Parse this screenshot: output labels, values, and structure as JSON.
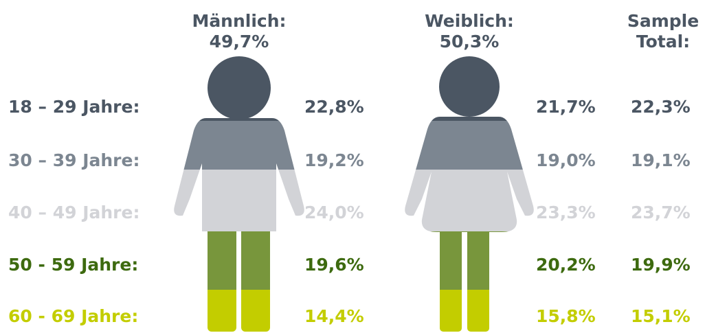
{
  "header": {
    "male": {
      "label": "Männlich:",
      "share": "49,7%"
    },
    "female": {
      "label": "Weiblich:",
      "share": "50,3%"
    },
    "total": {
      "line1": "Sample",
      "line2": "Total:"
    }
  },
  "rows": [
    {
      "label": "18 – 29 Jahre:",
      "male": "22,8%",
      "female": "21,7%",
      "total": "22,3%",
      "color": "#4b5663"
    },
    {
      "label": "30 – 39 Jahre:",
      "male": "19,2%",
      "female": "19,0%",
      "total": "19,1%",
      "color": "#7c8691"
    },
    {
      "label": "40 – 49 Jahre:",
      "male": "24,0%",
      "female": "23,3%",
      "total": "23,7%",
      "color": "#d2d3d7"
    },
    {
      "label": "50 - 59 Jahre:",
      "male": "19,6%",
      "female": "20,2%",
      "total": "19,9%",
      "color": "#3d6a0f"
    },
    {
      "label": "60 - 69 Jahre:",
      "male": "14,4%",
      "female": "15,8%",
      "total": "15,1%",
      "color": "#c3cd00"
    }
  ]
}
